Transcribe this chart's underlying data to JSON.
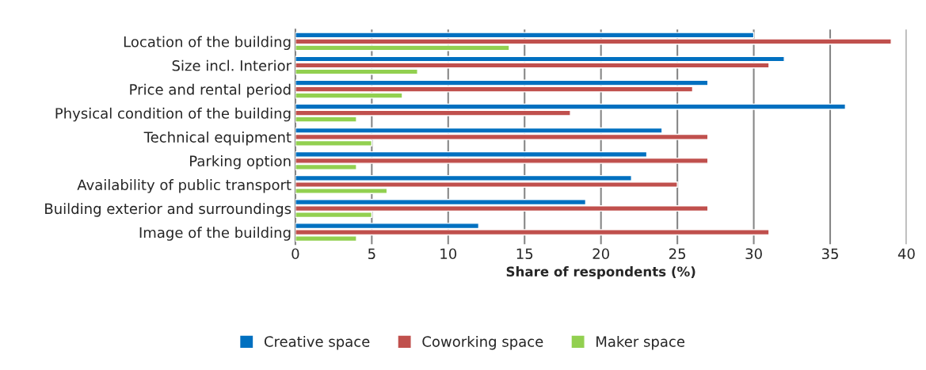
{
  "chart_data": {
    "type": "bar",
    "orientation": "horizontal",
    "xlabel": "Share of respondents (%)",
    "categories": [
      "Location of the building",
      "Size incl. Interior",
      "Price and rental period",
      "Physical condition of the building",
      "Technical equipment",
      "Parking option",
      "Availability of public transport",
      "Building exterior and surroundings",
      "Image of the building"
    ],
    "series": [
      {
        "name": "Creative space",
        "color": "#0070c0",
        "values": [
          30,
          32,
          27,
          36,
          24,
          23,
          22,
          19,
          12
        ]
      },
      {
        "name": "Coworking space",
        "color": "#c0504d",
        "values": [
          39,
          31,
          26,
          18,
          27,
          27,
          25,
          27,
          31
        ]
      },
      {
        "name": "Maker space",
        "color": "#92d050",
        "values": [
          14,
          8,
          7,
          4,
          5,
          4,
          6,
          5,
          4
        ]
      }
    ],
    "xlim": [
      0,
      40
    ],
    "xticks": [
      0,
      5,
      10,
      15,
      20,
      25,
      30,
      35,
      40
    ],
    "grid": "x",
    "legend": "bottom"
  }
}
